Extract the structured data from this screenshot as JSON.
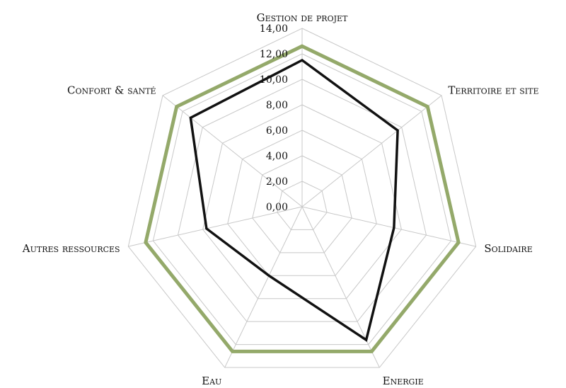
{
  "chart_data": {
    "type": "radar",
    "categories": [
      "Gestion de projet",
      "Territoire et site",
      "Solidaire",
      "Energie",
      "Eau",
      "Autres ressources",
      "Confort & santé"
    ],
    "series": [
      {
        "values": [
          12.6,
          12.6,
          12.6,
          12.6,
          12.6,
          12.6,
          12.6
        ],
        "color": "#94a96a"
      },
      {
        "values": [
          11.5,
          9.6,
          7.4,
          11.6,
          6.0,
          7.7,
          11.2
        ],
        "color": "#111111"
      }
    ],
    "ylim": [
      0,
      14
    ],
    "tick_labels": [
      "0,00",
      "2,00",
      "4,00",
      "6,00",
      "8,00",
      "10,00",
      "12,00",
      "14,00"
    ],
    "grid": true
  }
}
